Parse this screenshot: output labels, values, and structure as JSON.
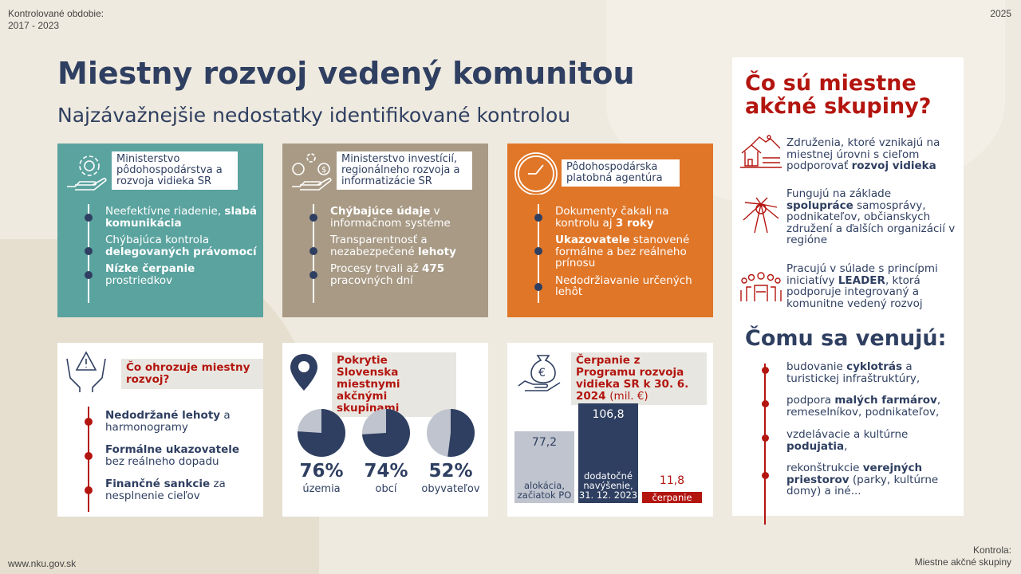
{
  "colors": {
    "navy": "#2f3f61",
    "teal": "#5aa39f",
    "taupe": "#a89a85",
    "orange": "#e07628",
    "red": "#b3150f",
    "light_gray": "#bfc4ce",
    "background": "#efeadf"
  },
  "header": {
    "period_label": "Kontrolované obdobie:",
    "period": "2017 - 2023",
    "year": "2025"
  },
  "title": "Miestny rozvoj vedený komunitou",
  "subtitle": "Najzávažnejšie nedostatky identifikované kontrolou",
  "cards": [
    {
      "icon": "gear-hand-icon",
      "label": "Ministerstvo pôdohospodárstva a rozvoja vidieka SR",
      "items": [
        [
          {
            "t": "Neefektívne riadenie, "
          },
          {
            "t": "slabá komunikácia",
            "b": true
          }
        ],
        [
          {
            "t": "Chýbajúca kontrola "
          },
          {
            "t": "delegovaných právomocí",
            "b": true
          }
        ],
        [
          {
            "t": "Nízke čerpanie",
            "b": true
          },
          {
            "t": " prostriedkov"
          }
        ]
      ]
    },
    {
      "icon": "investment-hand-icon",
      "label": "Ministerstvo investícií, regionálneho rozvoja a informatizácie SR",
      "items": [
        [
          {
            "t": "Chýbajúce údaje",
            "b": true
          },
          {
            "t": " v informačnom systéme"
          }
        ],
        [
          {
            "t": "Transparentnosť a nezabezpečené "
          },
          {
            "t": "lehoty",
            "b": true
          }
        ],
        [
          {
            "t": "Procesy trvali až "
          },
          {
            "t": "475",
            "b": true
          },
          {
            "t": " pracovných dní"
          }
        ]
      ]
    },
    {
      "icon": "clock-icon",
      "label": "Pôdohospodárska platobná agentúra",
      "items": [
        [
          {
            "t": "Dokumenty čakali na kontrolu aj "
          },
          {
            "t": "3 roky",
            "b": true
          }
        ],
        [
          {
            "t": "Ukazovatele",
            "b": true
          },
          {
            "t": " stanovené formálne a bez reálneho prínosu"
          }
        ],
        [
          {
            "t": "Nedodržiavanie určených lehôt"
          }
        ]
      ]
    }
  ],
  "threats": {
    "icon": "warning-hands-icon",
    "title": "Čo ohrozuje miestny rozvoj?",
    "items": [
      [
        {
          "t": "Nedodržané lehoty",
          "b": true
        },
        {
          "t": " a harmonogramy"
        }
      ],
      [
        {
          "t": "Formálne ukazovatele",
          "b": true
        },
        {
          "t": " bez reálneho dopadu"
        }
      ],
      [
        {
          "t": "Finančné sankcie",
          "b": true
        },
        {
          "t": " za nesplnenie cieľov"
        }
      ]
    ]
  },
  "coverage": {
    "icon": "map-pin-icon",
    "title": "Pokrytie Slovenska miestnymi akčnými skupinami",
    "chart_data": {
      "type": "pie",
      "series": [
        {
          "label": "územia",
          "value": 76,
          "display": "76%"
        },
        {
          "label": "obcí",
          "value": 74,
          "display": "74%"
        },
        {
          "label": "obyvateľov",
          "value": 52,
          "display": "52%"
        }
      ]
    }
  },
  "funding": {
    "icon": "money-bag-hand-icon",
    "title": "Čerpanie z Programu rozvoja vidieka SR k 30. 6. 2024",
    "unit": "(mil. €)",
    "chart_data": {
      "type": "bar",
      "categories": [
        "alokácia, začiatok PO",
        "dodatočné navýšenie, 31. 12. 2023",
        "čerpanie"
      ],
      "values": [
        77.2,
        106.8,
        11.8
      ],
      "value_labels": [
        "77,2",
        "106,8",
        "11,8"
      ],
      "colors": [
        "#bfc4ce",
        "#2f3f61",
        "#b3150f"
      ]
    }
  },
  "right": {
    "heading1": "Čo sú miestne akčné skupiny?",
    "about": [
      {
        "icon": "village-icon",
        "text": [
          {
            "t": "Združenia, ktoré vznikajú na miestnej úrovni s cieľom podporovať "
          },
          {
            "t": "rozvoj vidieka",
            "b": true
          }
        ]
      },
      {
        "icon": "joined-hands-icon",
        "text": [
          {
            "t": "Fungujú na základe "
          },
          {
            "t": "spolupráce",
            "b": true
          },
          {
            "t": " samosprávy, podnikateľov, občianskych združení a ďalších organizácií v regióne"
          }
        ]
      },
      {
        "icon": "community-group-icon",
        "text": [
          {
            "t": "Pracujú v súlade s princípmi iniciatívy "
          },
          {
            "t": "LEADER",
            "b": true
          },
          {
            "t": ", ktorá podporuje integrovaný a komunitne vedený rozvoj"
          }
        ]
      }
    ],
    "heading2": "Čomu sa venujú:",
    "topics": [
      [
        {
          "t": "budovanie "
        },
        {
          "t": "cyklotrás",
          "b": true
        },
        {
          "t": " a turistickej infraštruktúry,"
        }
      ],
      [
        {
          "t": "podpora "
        },
        {
          "t": "malých farmárov",
          "b": true
        },
        {
          "t": ", remeselníkov, podnikateľov,"
        }
      ],
      [
        {
          "t": "vzdelávacie a kultúrne "
        },
        {
          "t": "podujatia",
          "b": true
        },
        {
          "t": ","
        }
      ],
      [
        {
          "t": "rekonštrukcie "
        },
        {
          "t": "verejných priestorov",
          "b": true
        },
        {
          "t": " (parky, kultúrne domy) a iné..."
        }
      ]
    ]
  },
  "footer": {
    "website": "www.nku.gov.sk",
    "audit_label": "Kontrola:",
    "audit_name": "Miestne akčné skupiny"
  }
}
